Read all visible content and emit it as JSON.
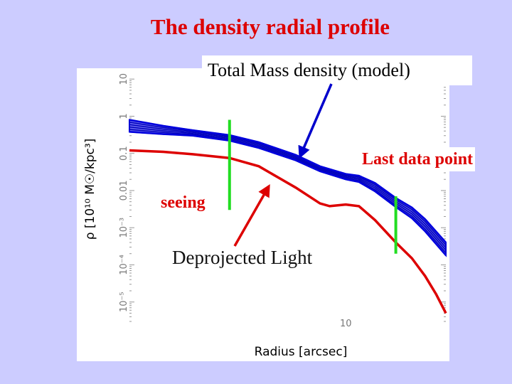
{
  "slide": {
    "title": "The density radial profile",
    "callouts": {
      "model": "Total Mass density (model)",
      "last_point": "Last data point",
      "seeing": "seeing",
      "light": "Deprojected Light"
    }
  },
  "colors": {
    "background": "#ccccff",
    "title": "#dd0000",
    "model_band": "#0000dd",
    "light_curve": "#dd0000",
    "markers": "#22dd22",
    "arrow_blue": "#0000cc",
    "arrow_red": "#dd0000"
  },
  "chart_data": {
    "type": "line",
    "xlabel": "Radius [arcsec]",
    "ylabel": "ρ [10¹⁰ M☉/kpc³]",
    "x_scale": "log",
    "y_scale": "log",
    "xlim": [
      0.5,
      40
    ],
    "ylim": [
      3e-06,
      15
    ],
    "x_tick_labels": [
      "10"
    ],
    "y_tick_labels": [
      "10",
      "1",
      "0.1",
      "0.01",
      "10⁻³",
      "10⁻⁴",
      "10⁻⁵"
    ],
    "series": [
      {
        "name": "Total Mass density (model)",
        "kind": "band",
        "x": [
          0.5,
          0.8,
          1.2,
          2.0,
          3.0,
          5.0,
          7.0,
          10.0,
          12.0,
          15.0,
          20.0,
          25.0,
          30.0,
          40.0
        ],
        "upper": [
          0.8,
          0.55,
          0.42,
          0.31,
          0.2,
          0.091,
          0.045,
          0.028,
          0.025,
          0.016,
          0.0063,
          0.0035,
          0.0017,
          0.0004
        ],
        "lower": [
          0.38,
          0.33,
          0.3,
          0.22,
          0.14,
          0.065,
          0.033,
          0.02,
          0.017,
          0.0095,
          0.0036,
          0.0018,
          0.0008,
          0.00018
        ]
      },
      {
        "name": "Deprojected Light",
        "kind": "line",
        "x": [
          0.5,
          0.8,
          1.2,
          2.0,
          3.0,
          5.0,
          7.0,
          8.0,
          10.0,
          12.0,
          15.0,
          20.0,
          25.0,
          30.0,
          35.0,
          40.0
        ],
        "y": [
          0.12,
          0.11,
          0.095,
          0.075,
          0.045,
          0.012,
          0.0045,
          0.0038,
          0.0042,
          0.0038,
          0.0016,
          0.0004,
          0.00015,
          5e-05,
          1.6e-05,
          5e-06
        ]
      }
    ],
    "markers": [
      {
        "label": "seeing",
        "x": 2.0,
        "y_range": [
          0.003,
          0.8
        ]
      },
      {
        "label": "Last data point",
        "x": 20.0,
        "y_range": [
          0.0002,
          0.007
        ]
      }
    ]
  }
}
